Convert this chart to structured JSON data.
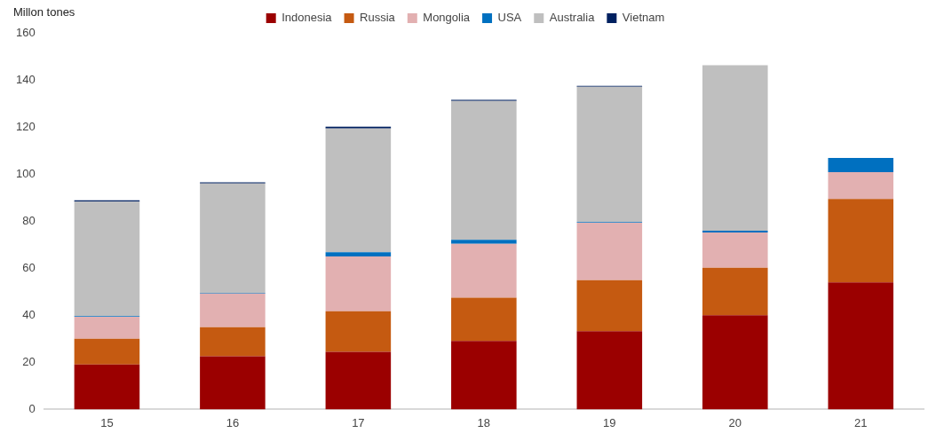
{
  "chart_data": {
    "type": "bar",
    "stacked": true,
    "ylabel": "Millon tones",
    "categories": [
      "15",
      "16",
      "17",
      "18",
      "19",
      "20",
      "21"
    ],
    "series": [
      {
        "name": "Indonesia",
        "color": "#9b0000",
        "values": [
          19.1,
          22.6,
          24.5,
          29.1,
          33.2,
          40.0,
          54.0
        ]
      },
      {
        "name": "Russia",
        "color": "#c55a11",
        "values": [
          10.9,
          12.3,
          17.2,
          18.4,
          21.7,
          20.2,
          35.4
        ]
      },
      {
        "name": "Mongolia",
        "color": "#e2b0b1",
        "values": [
          9.4,
          14.4,
          23.3,
          22.9,
          24.4,
          15.0,
          11.4
        ]
      },
      {
        "name": "USA",
        "color": "#0070c0",
        "values": [
          0.2,
          0.2,
          1.8,
          1.7,
          0.3,
          0.7,
          6.0
        ]
      },
      {
        "name": "Australia",
        "color": "#bfbfbf",
        "values": [
          48.7,
          46.5,
          52.6,
          59.0,
          57.5,
          70.3,
          0
        ]
      },
      {
        "name": "Vietnam",
        "color": "#002060",
        "values": [
          0.5,
          0.5,
          0.7,
          0.4,
          0.4,
          0,
          0
        ]
      }
    ],
    "ylim": [
      0,
      160
    ],
    "yticks": [
      0,
      20,
      40,
      60,
      80,
      100,
      120,
      140,
      160
    ],
    "grid": false,
    "legend": "top"
  }
}
